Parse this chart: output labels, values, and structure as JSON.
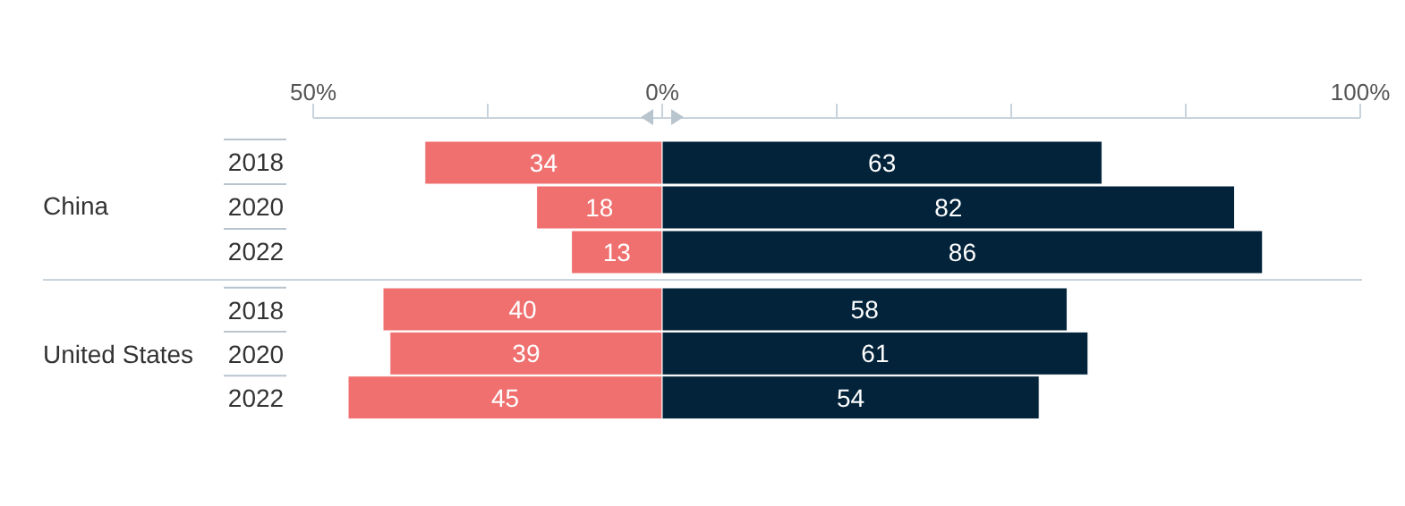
{
  "chart_data": [
    {
      "type": "bar",
      "title": "China",
      "orientation": "horizontal",
      "data_labels": true,
      "categories": [
        "2018",
        "2020",
        "2022"
      ],
      "xlim": [
        -50,
        100
      ],
      "xticks": [
        {
          "value": -50,
          "label": "50%"
        },
        {
          "value": -25,
          "label": null
        },
        {
          "value": 0,
          "label": "0%"
        },
        {
          "value": 25,
          "label": null
        },
        {
          "value": 50,
          "label": null
        },
        {
          "value": 75,
          "label": null
        },
        {
          "value": 100,
          "label": "100%"
        }
      ],
      "series": [
        {
          "color": "#f07070",
          "values": [
            34,
            18,
            13
          ],
          "base": [
            -34,
            -18,
            -13
          ]
        },
        {
          "color": "#02233a",
          "values": [
            63,
            82,
            86
          ]
        }
      ]
    },
    {
      "type": "bar",
      "title": "United States",
      "orientation": "horizontal",
      "data_labels": true,
      "categories": [
        "2018",
        "2020",
        "2022"
      ],
      "xlim": [
        -50,
        100
      ],
      "tick_labels": "y",
      "series": [
        {
          "color": "#f07070",
          "values": [
            40,
            39,
            45
          ],
          "base": [
            -40,
            -39,
            -45
          ]
        },
        {
          "color": "#02233a",
          "values": [
            58,
            61,
            54
          ]
        }
      ]
    }
  ]
}
